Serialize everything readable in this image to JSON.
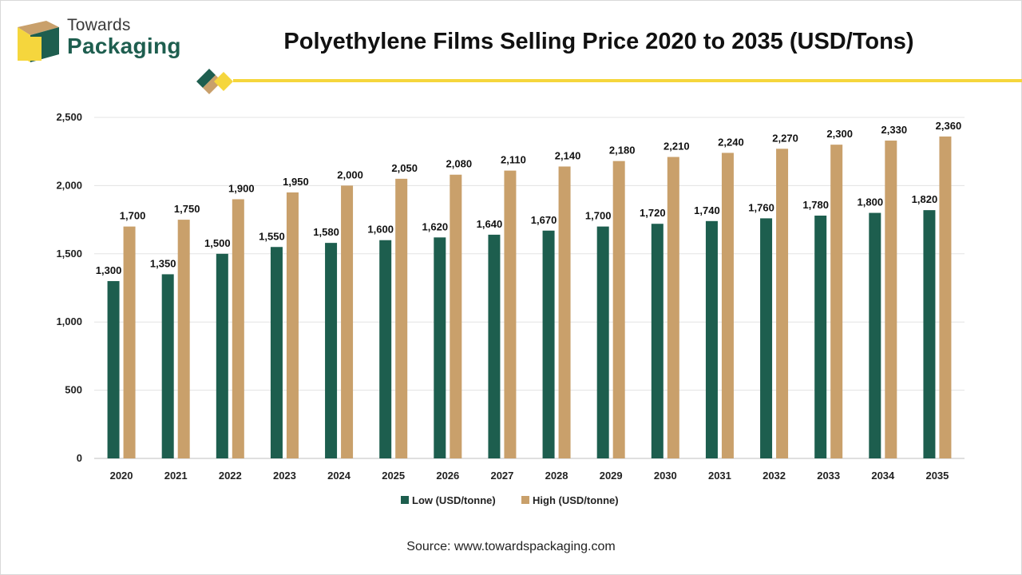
{
  "header": {
    "brand_top": "Towards",
    "brand_bottom": "Packaging",
    "title": "Polyethylene Films Selling Price 2020 to 2035 (USD/Tons)"
  },
  "footer": {
    "source": "Source: www.towardspackaging.com"
  },
  "colors": {
    "low": "#1d5e4e",
    "high": "#c9a06b",
    "accent": "#f5d63d",
    "brand_green": "#1e5e4f",
    "brand_tan": "#c9a06b"
  },
  "chart_data": {
    "type": "bar",
    "categories": [
      "2020",
      "2021",
      "2022",
      "2023",
      "2024",
      "2025",
      "2026",
      "2027",
      "2028",
      "2029",
      "2030",
      "2031",
      "2032",
      "2033",
      "2034",
      "2035"
    ],
    "series": [
      {
        "name": "Low (USD/tonne)",
        "values": [
          1300,
          1350,
          1500,
          1550,
          1580,
          1600,
          1620,
          1640,
          1670,
          1700,
          1720,
          1740,
          1760,
          1780,
          1800,
          1820
        ]
      },
      {
        "name": "High (USD/tonne)",
        "values": [
          1700,
          1750,
          1900,
          1950,
          2000,
          2050,
          2080,
          2110,
          2140,
          2180,
          2210,
          2240,
          2270,
          2300,
          2330,
          2360
        ]
      }
    ],
    "yticks": [
      "0",
      "500",
      "1,000",
      "1,500",
      "2,000",
      "2,500"
    ],
    "ylim": [
      0,
      2500
    ],
    "grid": true,
    "legend": "bottom"
  }
}
